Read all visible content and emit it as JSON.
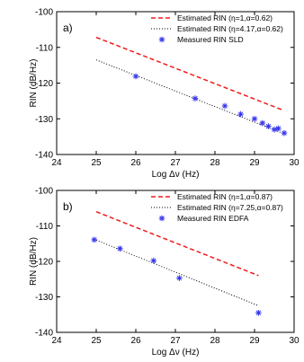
{
  "chart_data": [
    {
      "type": "line",
      "panel_label": "a)",
      "xlabel": "Log Δν (Hz)",
      "ylabel": "RIN (dB/Hz)",
      "xlim": [
        24,
        30
      ],
      "ylim": [
        -140,
        -100
      ],
      "xticks": [
        "24",
        "25",
        "26",
        "27",
        "28",
        "29",
        "30"
      ],
      "yticks": [
        "-100",
        "-110",
        "-120",
        "-130",
        "-140"
      ],
      "grid": false,
      "legend_position": "top-right",
      "series": [
        {
          "name": "Estimated RIN (η=1,α=0.62)",
          "style": "dashed",
          "color": "#ee1c1c",
          "x": [
            25.0,
            29.7
          ],
          "y": [
            -107.2,
            -127.5
          ]
        },
        {
          "name": "Estimated RIN (η=4.17,α=0.62)",
          "style": "dotted",
          "color": "#000000",
          "x": [
            25.0,
            29.7
          ],
          "y": [
            -113.5,
            -134.0
          ]
        },
        {
          "name": "Measured RIN SLD",
          "style": "markers",
          "color": "#3333ee",
          "x": [
            26.0,
            27.5,
            28.25,
            28.65,
            29.0,
            29.2,
            29.35,
            29.5,
            29.6,
            29.75
          ],
          "y": [
            -118.1,
            -124.3,
            -126.4,
            -128.7,
            -130.0,
            -131.2,
            -132.1,
            -133.0,
            -132.7,
            -134.0
          ]
        }
      ]
    },
    {
      "type": "line",
      "panel_label": "b)",
      "xlabel": "Log Δν (Hz)",
      "ylabel": "RIN (dB/Hz)",
      "xlim": [
        24,
        30
      ],
      "ylim": [
        -140,
        -100
      ],
      "xticks": [
        "24",
        "25",
        "26",
        "27",
        "28",
        "29",
        "30"
      ],
      "yticks": [
        "-100",
        "-110",
        "-120",
        "-130",
        "-140"
      ],
      "grid": false,
      "legend_position": "top-right",
      "series": [
        {
          "name": "Estimated RIN (η=1,α=0.87)",
          "style": "dashed",
          "color": "#ee1c1c",
          "x": [
            25.0,
            29.1
          ],
          "y": [
            -106.0,
            -124.0
          ]
        },
        {
          "name": "Estimated RIN (η=7.25,α=0.87)",
          "style": "dotted",
          "color": "#000000",
          "x": [
            25.0,
            29.1
          ],
          "y": [
            -114.0,
            -132.5
          ]
        },
        {
          "name": "Measured RIN EDFA",
          "style": "markers",
          "color": "#3333ee",
          "x": [
            24.95,
            25.6,
            26.45,
            27.1,
            29.1
          ],
          "y": [
            -113.9,
            -116.4,
            -119.8,
            -124.7,
            -134.5
          ]
        }
      ]
    }
  ]
}
